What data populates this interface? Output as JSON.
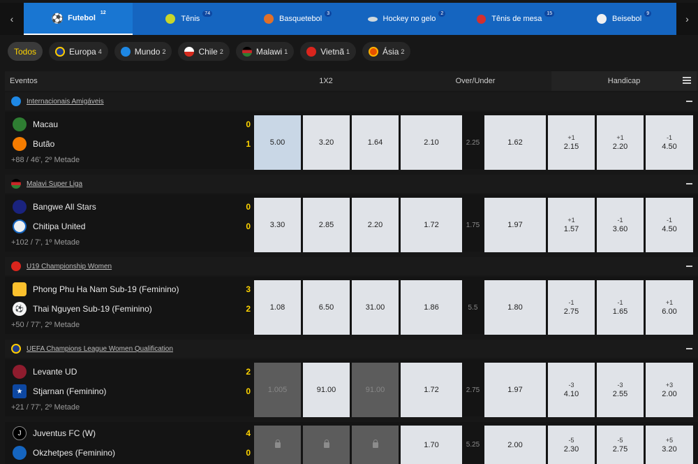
{
  "sports": [
    {
      "label": "Futebol",
      "count": "12",
      "icon": "soccer-ball-icon"
    },
    {
      "label": "Tênis",
      "count": "74",
      "icon": "tennis-ball-icon"
    },
    {
      "label": "Basquetebol",
      "count": "3",
      "icon": "basketball-icon"
    },
    {
      "label": "Hockey no gelo",
      "count": "2",
      "icon": "hockey-icon"
    },
    {
      "label": "Tênis de mesa",
      "count": "15",
      "icon": "table-tennis-icon"
    },
    {
      "label": "Beisebol",
      "count": "9",
      "icon": "baseball-icon"
    }
  ],
  "filters": [
    {
      "label": "Todos",
      "count": ""
    },
    {
      "label": "Europa",
      "count": "4"
    },
    {
      "label": "Mundo",
      "count": "2"
    },
    {
      "label": "Chile",
      "count": "2"
    },
    {
      "label": "Malawi",
      "count": "1"
    },
    {
      "label": "Vietnã",
      "count": "1"
    },
    {
      "label": "Ásia",
      "count": "2"
    }
  ],
  "header": {
    "events": "Eventos",
    "x12": "1X2",
    "over_under": "Over/Under",
    "handicap": "Handicap"
  },
  "leagues": [
    {
      "name": "Internacionais Amigáveis"
    },
    {
      "name": "Malavi Super Liga"
    },
    {
      "name": "U19 Championship Women"
    },
    {
      "name": "UEFA Champions League Women Qualification"
    }
  ],
  "matches": [
    {
      "home": "Macau",
      "away": "Butão",
      "home_score": "0",
      "away_score": "1",
      "info": "+88 / 46', 2º Metade",
      "x12": [
        "5.00",
        "3.20",
        "1.64"
      ],
      "ou_over": "2.10",
      "ou_line": "2.25",
      "ou_under": "1.62",
      "hc": [
        {
          "h": "+1",
          "v": "2.15"
        },
        {
          "h": "+1",
          "v": "2.20"
        },
        {
          "h": "-1",
          "v": "4.50"
        }
      ]
    },
    {
      "home": "Bangwe All Stars",
      "away": "Chitipa United",
      "home_score": "0",
      "away_score": "0",
      "info": "+102 / 7', 1º Metade",
      "x12": [
        "3.30",
        "2.85",
        "2.20"
      ],
      "ou_over": "1.72",
      "ou_line": "1.75",
      "ou_under": "1.97",
      "hc": [
        {
          "h": "+1",
          "v": "1.57"
        },
        {
          "h": "-1",
          "v": "3.60"
        },
        {
          "h": "-1",
          "v": "4.50"
        }
      ]
    },
    {
      "home": "Phong Phu Ha Nam Sub-19 (Feminino)",
      "away": "Thai Nguyen Sub-19 (Feminino)",
      "home_score": "3",
      "away_score": "2",
      "info": "+50 / 77', 2º Metade",
      "x12": [
        "1.08",
        "6.50",
        "31.00"
      ],
      "ou_over": "1.86",
      "ou_line": "5.5",
      "ou_under": "1.80",
      "hc": [
        {
          "h": "-1",
          "v": "2.75"
        },
        {
          "h": "-1",
          "v": "1.65"
        },
        {
          "h": "+1",
          "v": "6.00"
        }
      ]
    },
    {
      "home": "Levante UD",
      "away": "Stjarnan (Feminino)",
      "home_score": "2",
      "away_score": "0",
      "info": "+21 / 77', 2º Metade",
      "x12": [
        "1.005",
        "91.00",
        "91.00"
      ],
      "ou_over": "1.72",
      "ou_line": "2.75",
      "ou_under": "1.97",
      "hc": [
        {
          "h": "-3",
          "v": "4.10"
        },
        {
          "h": "-3",
          "v": "2.55"
        },
        {
          "h": "+3",
          "v": "2.00"
        }
      ]
    },
    {
      "home": "Juventus FC (W)",
      "away": "Okzhetpes (Feminino)",
      "home_score": "4",
      "away_score": "0",
      "info": "",
      "x12": [
        "",
        "",
        ""
      ],
      "ou_over": "1.70",
      "ou_line": "5.25",
      "ou_under": "2.00",
      "hc": [
        {
          "h": "-5",
          "v": "2.30"
        },
        {
          "h": "-5",
          "v": "2.75"
        },
        {
          "h": "+5",
          "v": "3.20"
        }
      ]
    }
  ],
  "colors": {
    "accent": "#1976d2",
    "score": "#ffd400",
    "odd_bg": "#e0e3e8",
    "locked_bg": "#5c5c5c"
  }
}
